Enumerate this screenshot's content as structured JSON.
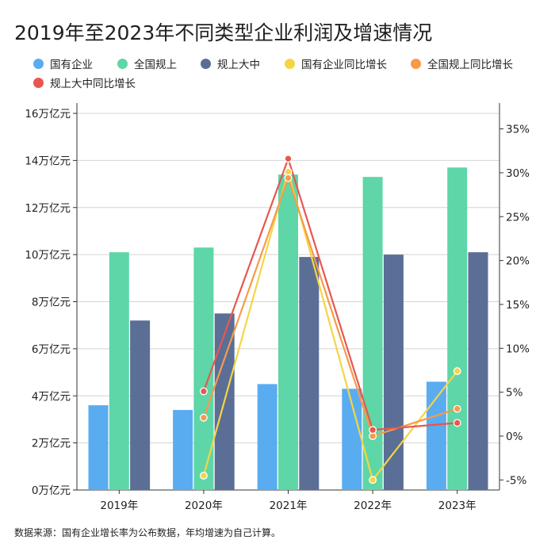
{
  "chart_data": {
    "type": "bar",
    "title": "2019年至2023年不同类型企业利润及增速情况",
    "categories": [
      "2019年",
      "2020年",
      "2021年",
      "2022年",
      "2023年"
    ],
    "series": [
      {
        "name": "国有企业",
        "kind": "bar",
        "axis": "left",
        "color": "#5aacf0",
        "values": [
          3.6,
          3.4,
          4.5,
          4.3,
          4.6
        ]
      },
      {
        "name": "全国规上",
        "kind": "bar",
        "axis": "left",
        "color": "#5ed6a7",
        "values": [
          10.1,
          10.3,
          13.4,
          13.3,
          13.7
        ]
      },
      {
        "name": "规上大中",
        "kind": "bar",
        "axis": "left",
        "color": "#5b6e96",
        "values": [
          7.2,
          7.5,
          9.9,
          10.0,
          10.1
        ]
      },
      {
        "name": "国有企业同比增长",
        "kind": "line",
        "axis": "right",
        "color": "#f5d544",
        "values": [
          null,
          -4.5,
          30.1,
          -5.0,
          7.4
        ]
      },
      {
        "name": "全国规上同比增长",
        "kind": "line",
        "axis": "right",
        "color": "#f79a4b",
        "values": [
          null,
          2.1,
          29.4,
          0.0,
          3.1
        ]
      },
      {
        "name": "规上大中同比增长",
        "kind": "line",
        "axis": "right",
        "color": "#e8574f",
        "values": [
          null,
          5.1,
          31.6,
          0.7,
          1.5
        ]
      }
    ],
    "y_left": {
      "min": 0,
      "max": 16,
      "ticks": [
        0,
        2,
        4,
        6,
        8,
        10,
        12,
        14,
        16
      ],
      "tick_labels": [
        "0万亿元",
        "2万亿元",
        "4万亿元",
        "6万亿元",
        "8万亿元",
        "10万亿元",
        "12万亿元",
        "14万亿元",
        "16万亿元"
      ]
    },
    "y_right": {
      "min": -6,
      "max": 37.5,
      "ticks": [
        -5,
        0,
        5,
        10,
        15,
        20,
        25,
        30,
        35
      ],
      "tick_labels": [
        "-5%",
        "0%",
        "5%",
        "10%",
        "15%",
        "20%",
        "25%",
        "30%",
        "35%"
      ]
    },
    "grid": true,
    "legend_position": "top"
  },
  "footnote": "数据来源：国有企业增长率为公布数据，年均增速为自己计算。"
}
